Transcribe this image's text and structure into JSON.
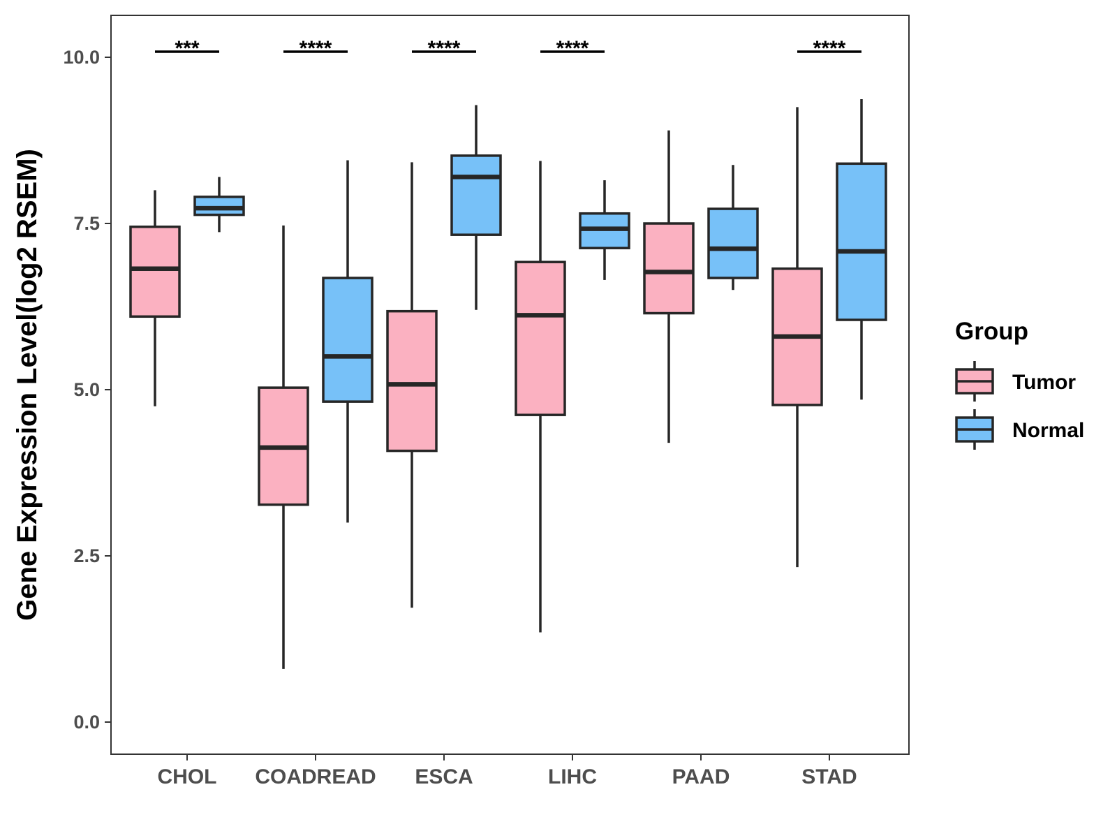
{
  "chart_data": {
    "type": "boxplot",
    "title": "",
    "xlabel": "",
    "ylabel": "Gene Expression Level(log2 RSEM)",
    "ylim": [
      -0.5,
      10.6
    ],
    "yticks": [
      0.0,
      2.5,
      5.0,
      7.5,
      10.0
    ],
    "ytick_labels": [
      "0.0",
      "2.5",
      "5.0",
      "7.5",
      "10.0"
    ],
    "categories": [
      "CHOL",
      "COADREAD",
      "ESCA",
      "LIHC",
      "PAAD",
      "STAD"
    ],
    "grid": false,
    "legend": {
      "title": "Group",
      "position": "right",
      "entries": [
        {
          "name": "Tumor",
          "color": "#fbb1c1"
        },
        {
          "name": "Normal",
          "color": "#77c1f8"
        }
      ]
    },
    "series": [
      {
        "name": "Tumor",
        "color": "#fbb1c1",
        "boxes": [
          {
            "category": "CHOL",
            "min": 4.75,
            "q1": 6.1,
            "median": 6.82,
            "q3": 7.45,
            "max": 8.0
          },
          {
            "category": "COADREAD",
            "min": 0.8,
            "q1": 3.27,
            "median": 4.13,
            "q3": 5.03,
            "max": 7.47
          },
          {
            "category": "ESCA",
            "min": 1.72,
            "q1": 4.08,
            "median": 5.08,
            "q3": 6.18,
            "max": 8.42
          },
          {
            "category": "LIHC",
            "min": 1.35,
            "q1": 4.62,
            "median": 6.12,
            "q3": 6.92,
            "max": 8.44
          },
          {
            "category": "PAAD",
            "min": 4.2,
            "q1": 6.15,
            "median": 6.77,
            "q3": 7.5,
            "max": 8.9
          },
          {
            "category": "STAD",
            "min": 2.33,
            "q1": 4.77,
            "median": 5.8,
            "q3": 6.82,
            "max": 9.25
          }
        ]
      },
      {
        "name": "Normal",
        "color": "#77c1f8",
        "boxes": [
          {
            "category": "CHOL",
            "min": 7.37,
            "q1": 7.63,
            "median": 7.73,
            "q3": 7.9,
            "max": 8.2
          },
          {
            "category": "COADREAD",
            "min": 3.0,
            "q1": 4.82,
            "median": 5.5,
            "q3": 6.68,
            "max": 8.45
          },
          {
            "category": "ESCA",
            "min": 6.2,
            "q1": 7.33,
            "median": 8.2,
            "q3": 8.52,
            "max": 9.28
          },
          {
            "category": "LIHC",
            "min": 6.65,
            "q1": 7.13,
            "median": 7.42,
            "q3": 7.65,
            "max": 8.15
          },
          {
            "category": "PAAD",
            "min": 6.5,
            "q1": 6.68,
            "median": 7.12,
            "q3": 7.72,
            "max": 8.38
          },
          {
            "category": "STAD",
            "min": 4.85,
            "q1": 6.05,
            "median": 7.08,
            "q3": 8.4,
            "max": 9.37
          }
        ]
      }
    ],
    "significance": [
      {
        "category": "CHOL",
        "label": "***"
      },
      {
        "category": "COADREAD",
        "label": "****"
      },
      {
        "category": "ESCA",
        "label": "****"
      },
      {
        "category": "LIHC",
        "label": "****"
      },
      {
        "category": "PAAD",
        "label": ""
      },
      {
        "category": "STAD",
        "label": "****"
      }
    ]
  }
}
